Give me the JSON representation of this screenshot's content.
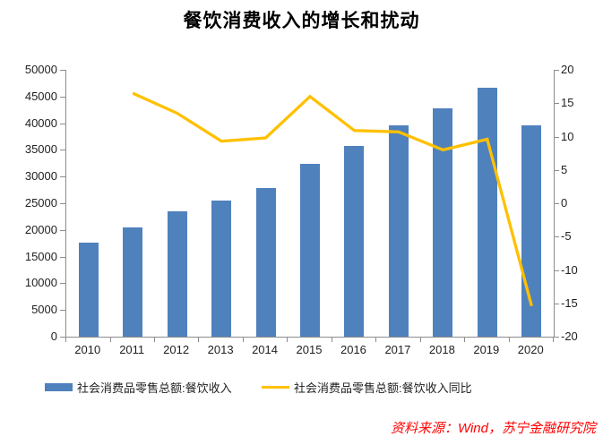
{
  "title": "餐饮消费收入的增长和扰动",
  "source_note": "资料来源：Wind，苏宁金融研究院",
  "colors": {
    "bar": "#4F81BD",
    "line": "#FFC000",
    "axis": "#8C8C8C",
    "tick_text": "#1F1F1F",
    "title_text": "#000000",
    "source_text": "#FF0000",
    "background": "#FFFFFF"
  },
  "chart_data": {
    "type": "bar",
    "subtype": "bar-line-combo",
    "title": "餐饮消费收入的增长和扰动",
    "categories": [
      "2010",
      "2011",
      "2012",
      "2013",
      "2014",
      "2015",
      "2016",
      "2017",
      "2018",
      "2019",
      "2020"
    ],
    "series": [
      {
        "name": "社会消费品零售总额:餐饮收入",
        "type": "bar",
        "axis": "left",
        "color": "#4F81BD",
        "values": [
          17648,
          20543,
          23448,
          25569,
          27860,
          32310,
          35799,
          39644,
          42716,
          46721,
          39527
        ]
      },
      {
        "name": "社会消费品零售总额:餐饮收入同比",
        "type": "line",
        "axis": "right",
        "color": "#FFC000",
        "values": [
          null,
          16.5,
          13.5,
          9.3,
          9.8,
          16.0,
          10.9,
          10.7,
          8.0,
          9.6,
          -15.4
        ]
      }
    ],
    "left_axis": {
      "min": 0,
      "max": 50000,
      "step": 5000,
      "ticks": [
        0,
        5000,
        10000,
        15000,
        20000,
        25000,
        30000,
        35000,
        40000,
        45000,
        50000
      ]
    },
    "right_axis": {
      "min": -20,
      "max": 20,
      "step": 5,
      "ticks": [
        -20,
        -15,
        -10,
        -5,
        0,
        5,
        10,
        15,
        20
      ]
    },
    "grid": false,
    "legend_position": "bottom"
  }
}
